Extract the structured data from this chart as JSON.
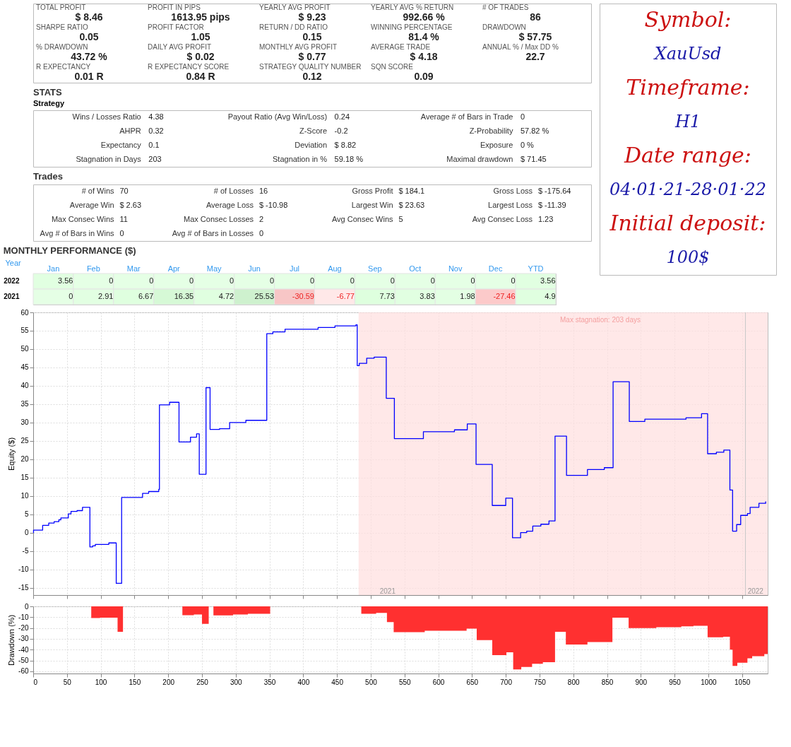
{
  "chart_data": [
    {
      "type": "other",
      "annotations": [
        "TOTAL PROFIT",
        "$ 8.46",
        "PROFIT IN PIPS",
        "1613.95 pips",
        "YEARLY AVG PROFIT",
        "$ 9.23",
        "YEARLY AVG % RETURN",
        "992.66 %",
        "# OF TRADES",
        "86",
        "SHARPE RATIO",
        "0.05",
        "PROFIT FACTOR",
        "1.05",
        "RETURN / DD RATIO",
        "0.15",
        "WINNING PERCENTAGE",
        "81.4 %",
        "DRAWDOWN",
        "$ 57.75",
        "% DRAWDOWN",
        "43.72 %",
        "DAILY AVG PROFIT",
        "$ 0.02",
        "MONTHLY AVG PROFIT",
        "$ 0.77",
        "AVERAGE TRADE",
        "$ 4.18",
        "ANNUAL % / Max DD %",
        "22.7",
        "R EXPECTANCY",
        "0.01 R",
        "R EXPECTANCY SCORE",
        "0.84 R",
        "STRATEGY QUALITY NUMBER",
        "0.12",
        "SQN SCORE",
        "0.09"
      ]
    },
    {
      "type": "other",
      "title": "STATS",
      "subtitle": "Strategy",
      "annotations": [
        "Wins / Losses Ratio",
        "4.38",
        "Payout Ratio (Avg Win/Loss)",
        "0.24",
        "Average # of Bars in Trade",
        "0",
        "AHPR",
        "0.32",
        "Z-Score",
        "-0.2",
        "Z-Probability",
        "57.82 %",
        "Expectancy",
        "0.1",
        "Deviation",
        "$ 8.82",
        "Exposure",
        "0 %",
        "Stagnation in Days",
        "203",
        "Stagnation in %",
        "59.18 %",
        "Maximal drawdown",
        "$ 71.45"
      ]
    },
    {
      "type": "other",
      "title": "Trades",
      "annotations": [
        "# of Wins",
        "70",
        "# of Losses",
        "16",
        "Gross Profit",
        "$ 184.1",
        "Gross Loss",
        "$ -175.64",
        "Average Win",
        "$ 2.63",
        "Average Loss",
        "$ -10.98",
        "Largest Win",
        "$ 23.63",
        "Largest Loss",
        "$ -11.39",
        "Max Consec Wins",
        "11",
        "Max Consec Losses",
        "2",
        "Avg Consec Wins",
        "5",
        "Avg Consec Loss",
        "1.23",
        "Avg # of Bars in Wins",
        "0",
        "Avg # of Bars in Losses",
        "0"
      ]
    },
    {
      "type": "heatmap",
      "title": "MONTHLY PERFORMANCE ($)",
      "ylabel": "Year",
      "categories": [
        "Jan",
        "Feb",
        "Mar",
        "Apr",
        "May",
        "Jun",
        "Jul",
        "Aug",
        "Sep",
        "Oct",
        "Nov",
        "Dec",
        "YTD"
      ],
      "y_categories": [
        "2022",
        "2021"
      ],
      "data_labels": true,
      "cells": [
        [
          3.56,
          0,
          0,
          0,
          0,
          0,
          0,
          0,
          0,
          0,
          0,
          0,
          3.56
        ],
        [
          0,
          2.91,
          6.67,
          16.35,
          4.72,
          25.53,
          -30.59,
          -6.77,
          7.73,
          3.83,
          1.98,
          -27.46,
          4.9
        ]
      ]
    },
    {
      "type": "other",
      "annotations": [
        "Symbol:",
        "XauUsd",
        "Timeframe:",
        "H1",
        "Date range:",
        "04·01·21-28·01·22",
        "Initial deposit:",
        "100$"
      ]
    },
    {
      "type": "step",
      "ylabel": "Equity ($)",
      "color": "#0000ff",
      "grid": true,
      "tick_labels": "y",
      "x": [
        0,
        0.5,
        14,
        23,
        31,
        38,
        41,
        52,
        56,
        65,
        73,
        84,
        88,
        92,
        112,
        123,
        131,
        162,
        171,
        186,
        187,
        202,
        216,
        233,
        242,
        246,
        256,
        262,
        276,
        291,
        315,
        346,
        355,
        373,
        422,
        447,
        478,
        480,
        483,
        494,
        505,
        523,
        535,
        578,
        624,
        643,
        656,
        680,
        700,
        710,
        722,
        731,
        740,
        752,
        764,
        773,
        790,
        821,
        846,
        859,
        883,
        906,
        967,
        990,
        999,
        1012,
        1023,
        1032,
        1036,
        1042,
        1048,
        1058,
        1062,
        1075,
        1085
      ],
      "values": [
        0,
        0.7,
        2.0,
        2.6,
        3.0,
        3.5,
        4.0,
        5.1,
        5.8,
        6.0,
        6.9,
        -3.9,
        -3.6,
        -3.2,
        -2.8,
        -13.8,
        9.6,
        10.7,
        11.2,
        11.8,
        34.8,
        35.5,
        24.7,
        26.0,
        26.9,
        15.9,
        39.5,
        28.1,
        28.3,
        30.0,
        30.6,
        54.2,
        54.7,
        55.4,
        55.9,
        56.3,
        56.6,
        45.5,
        46.1,
        47.5,
        47.8,
        36.6,
        25.6,
        27.5,
        28.0,
        29.6,
        18.6,
        7.4,
        9.4,
        -1.4,
        0.0,
        0.4,
        1.8,
        2.3,
        3.2,
        26.3,
        15.6,
        17.2,
        17.7,
        41.1,
        30.3,
        30.9,
        31.3,
        32.4,
        21.5,
        21.9,
        22.5,
        11.6,
        0.4,
        2.2,
        4.7,
        5.2,
        6.9,
        8.0,
        8.5
      ],
      "xlim": [
        0,
        1088
      ],
      "xticks": [
        0,
        50,
        100,
        150,
        200,
        250,
        300,
        350,
        400,
        450,
        500,
        550,
        600,
        650,
        700,
        750,
        800,
        850,
        900,
        950,
        1000,
        1050
      ],
      "ylim": [
        -17,
        60
      ],
      "yticks": [
        -15,
        -10,
        -5,
        0,
        5,
        10,
        15,
        20,
        25,
        30,
        35,
        40,
        45,
        50,
        55,
        60
      ],
      "bands": [
        {
          "axis": "x",
          "from": 482,
          "to": 1088,
          "label": "Max stagnation: 203 days",
          "color": "#ffdede"
        }
      ],
      "ref_lines": [
        {
          "axis": "x",
          "value": 1055,
          "color": "#c8c8c8"
        }
      ],
      "annotations": [
        {
          "text": "2021",
          "x": 525,
          "y": -16
        },
        {
          "text": "2022",
          "x": 1070,
          "y": -16
        }
      ]
    },
    {
      "type": "area",
      "ylabel": "Drawdown (%)",
      "color": "#ff3030",
      "grid": true,
      "x": [
        0,
        86,
        99,
        125,
        133,
        221,
        238,
        250,
        260,
        267,
        296,
        318,
        351,
        486,
        508,
        524,
        534,
        580,
        642,
        657,
        680,
        701,
        711,
        723,
        739,
        755,
        773,
        789,
        821,
        858,
        882,
        923,
        960,
        978,
        999,
        1022,
        1032,
        1036,
        1043,
        1058,
        1065,
        1083,
        1088
      ],
      "values": [
        0,
        -10.8,
        -10.5,
        -23.5,
        0,
        -8.1,
        -7.5,
        -16.2,
        0,
        -8.3,
        -7.5,
        -6.8,
        0,
        -6.8,
        -6,
        -14.5,
        -23.9,
        -22.5,
        -20.5,
        -31.1,
        -45.1,
        -42.5,
        -58.2,
        -56,
        -53,
        -51.5,
        -23.5,
        -35.2,
        -33,
        -10.5,
        -20,
        -19.3,
        -18.5,
        -18,
        -28.5,
        -28,
        -40,
        -55,
        -52,
        -48,
        -46,
        -44,
        -44
      ],
      "xlim": [
        0,
        1088
      ],
      "xticks": [
        0,
        50,
        100,
        150,
        200,
        250,
        300,
        350,
        400,
        450,
        500,
        550,
        600,
        650,
        700,
        750,
        800,
        850,
        900,
        950,
        1000,
        1050
      ],
      "ylim": [
        -62,
        0
      ],
      "yticks": [
        -60,
        -50,
        -40,
        -30,
        -20,
        -10,
        0
      ]
    }
  ]
}
